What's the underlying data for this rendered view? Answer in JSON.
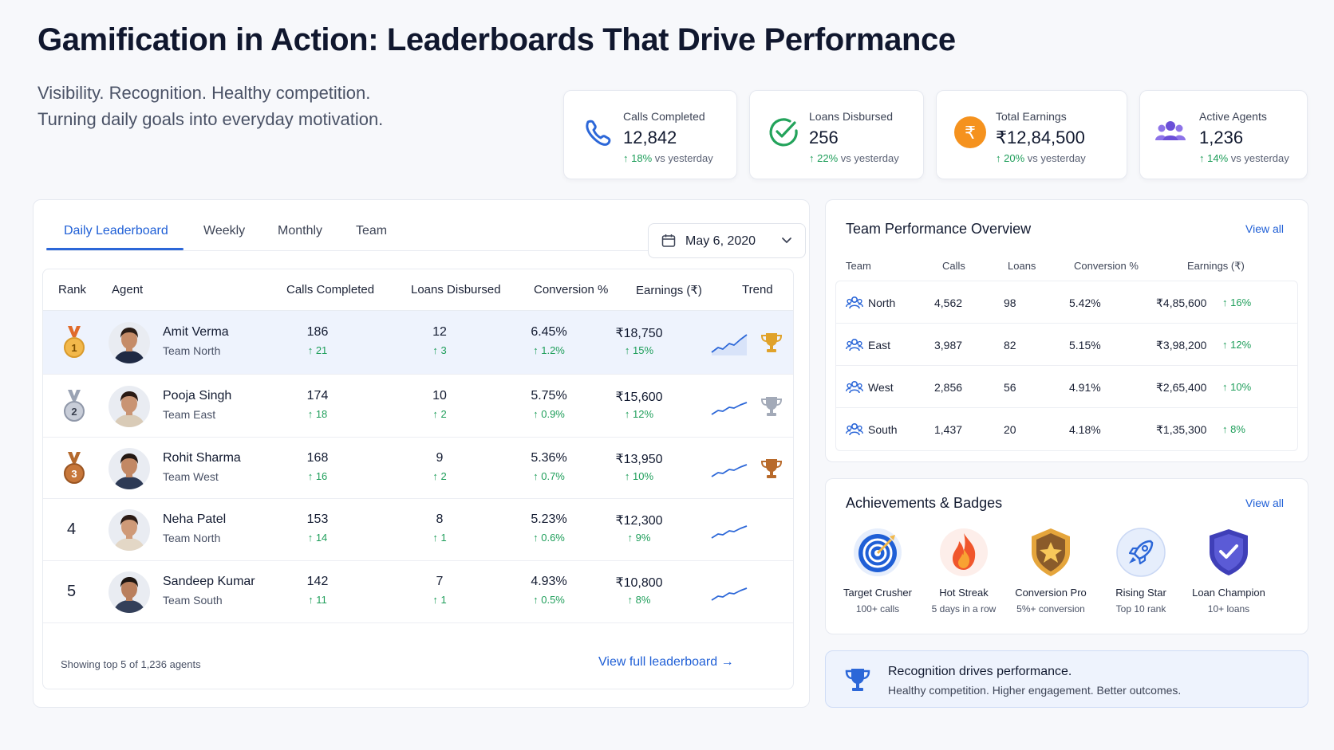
{
  "header": {
    "title": "Gamification in Action: Leaderboards That Drive Performance",
    "subtitle_line1": "Visibility. Recognition. Healthy competition.",
    "subtitle_line2": "Turning daily goals into everyday motivation."
  },
  "kpis": [
    {
      "label": "Calls Completed",
      "value": "12,842",
      "delta": "18%",
      "delta_suffix": "vs yesterday",
      "icon": "phone-icon"
    },
    {
      "label": "Loans Disbursed",
      "value": "256",
      "delta": "22%",
      "delta_suffix": "vs yesterday",
      "icon": "check-circle-icon"
    },
    {
      "label": "Total Earnings",
      "value": "₹12,84,500",
      "delta": "20%",
      "delta_suffix": "vs yesterday",
      "icon": "rupee-icon"
    },
    {
      "label": "Active Agents",
      "value": "1,236",
      "delta": "14%",
      "delta_suffix": "vs yesterday",
      "icon": "users-icon"
    }
  ],
  "leaderboard": {
    "tabs": [
      "Daily Leaderboard",
      "Weekly",
      "Monthly",
      "Team"
    ],
    "active_tab": "Daily Leaderboard",
    "date": "May 6, 2020",
    "columns": [
      "Rank",
      "Agent",
      "Calls Completed",
      "Loans Disbursed",
      "Conversion %",
      "Earnings (₹)",
      "Trend"
    ],
    "rows": [
      {
        "rank": "1",
        "name": "Amit Verma",
        "team": "Team North",
        "calls": "186",
        "calls_delta": "21",
        "loans": "12",
        "loans_delta": "3",
        "conv": "6.45%",
        "conv_delta": "1.2%",
        "earn": "₹18,750",
        "earn_delta": "15%",
        "medal": "gold",
        "trophy": "gold"
      },
      {
        "rank": "2",
        "name": "Pooja Singh",
        "team": "Team East",
        "calls": "174",
        "calls_delta": "18",
        "loans": "10",
        "loans_delta": "2",
        "conv": "5.75%",
        "conv_delta": "0.9%",
        "earn": "₹15,600",
        "earn_delta": "12%",
        "medal": "silver",
        "trophy": "silver"
      },
      {
        "rank": "3",
        "name": "Rohit Sharma",
        "team": "Team West",
        "calls": "168",
        "calls_delta": "16",
        "loans": "9",
        "loans_delta": "2",
        "conv": "5.36%",
        "conv_delta": "0.7%",
        "earn": "₹13,950",
        "earn_delta": "10%",
        "medal": "bronze",
        "trophy": "bronze"
      },
      {
        "rank": "4",
        "name": "Neha Patel",
        "team": "Team North",
        "calls": "153",
        "calls_delta": "14",
        "loans": "8",
        "loans_delta": "1",
        "conv": "5.23%",
        "conv_delta": "0.6%",
        "earn": "₹12,300",
        "earn_delta": "9%",
        "medal": "",
        "trophy": ""
      },
      {
        "rank": "5",
        "name": "Sandeep Kumar",
        "team": "Team South",
        "calls": "142",
        "calls_delta": "11",
        "loans": "7",
        "loans_delta": "1",
        "conv": "4.93%",
        "conv_delta": "0.5%",
        "earn": "₹10,800",
        "earn_delta": "8%",
        "medal": "",
        "trophy": ""
      }
    ],
    "showing": "Showing top 5 of 1,236 agents",
    "view_full": "View full leaderboard"
  },
  "team_performance": {
    "title": "Team Performance Overview",
    "view_all": "View all",
    "columns": [
      "Team",
      "Calls",
      "Loans",
      "Conversion %",
      "Earnings (₹)"
    ],
    "rows": [
      {
        "team": "North",
        "calls": "4,562",
        "loans": "98",
        "conv": "5.42%",
        "earn": "₹4,85,600",
        "growth": "16%"
      },
      {
        "team": "East",
        "calls": "3,987",
        "loans": "82",
        "conv": "5.15%",
        "earn": "₹3,98,200",
        "growth": "12%"
      },
      {
        "team": "West",
        "calls": "2,856",
        "loans": "56",
        "conv": "4.91%",
        "earn": "₹2,65,400",
        "growth": "10%"
      },
      {
        "team": "South",
        "calls": "1,437",
        "loans": "20",
        "conv": "4.18%",
        "earn": "₹1,35,300",
        "growth": "8%"
      }
    ]
  },
  "achievements": {
    "title": "Achievements & Badges",
    "view_all": "View all",
    "badges": [
      {
        "name": "Target Crusher",
        "desc": "100+ calls",
        "icon": "target-icon"
      },
      {
        "name": "Hot Streak",
        "desc": "5 days in a row",
        "icon": "flame-icon"
      },
      {
        "name": "Conversion Pro",
        "desc": "5%+ conversion",
        "icon": "star-shield-icon"
      },
      {
        "name": "Rising Star",
        "desc": "Top 10 rank",
        "icon": "rocket-icon"
      },
      {
        "name": "Loan Champion",
        "desc": "10+ loans",
        "icon": "shield-check-icon"
      }
    ]
  },
  "recognition": {
    "title": "Recognition drives performance.",
    "subtitle": "Healthy competition. Higher engagement. Better outcomes."
  },
  "colors": {
    "accent": "#1f5fd6",
    "positive": "#1e9e5a",
    "highlight_row": "#eef3fd"
  }
}
